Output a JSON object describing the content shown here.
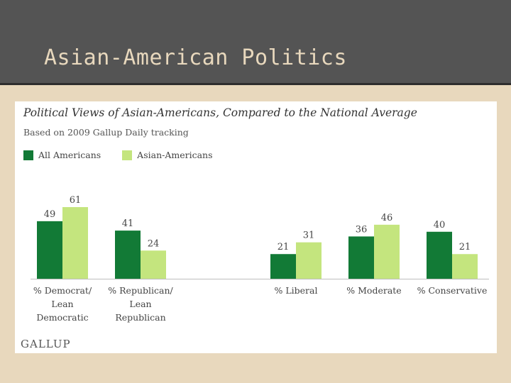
{
  "slide": {
    "title": "Asian-American Politics"
  },
  "brand": {
    "logo_text": "GALLUP"
  },
  "colors": {
    "background": "#e8d8bd",
    "header": "#545454",
    "series_all": "#127a36",
    "series_asian": "#c4e57e"
  },
  "chart_data": {
    "type": "bar",
    "title": "Political Views of Asian-Americans, Compared to the National Average",
    "subtitle": "Based on 2009 Gallup Daily tracking",
    "categories": [
      [
        "% Democrat/",
        "Lean",
        "Democratic"
      ],
      [
        "% Republican/",
        "Lean",
        "Republican"
      ],
      [
        "% Liberal"
      ],
      [
        "% Moderate"
      ],
      [
        "% Conservative"
      ]
    ],
    "series": [
      {
        "name": "All Americans",
        "color": "#127a36",
        "values": [
          49,
          41,
          21,
          36,
          40
        ]
      },
      {
        "name": "Asian-Americans",
        "color": "#c4e57e",
        "values": [
          61,
          24,
          31,
          46,
          21
        ]
      }
    ],
    "ylim": [
      0,
      61
    ],
    "legend": "top-left",
    "grid": false
  }
}
